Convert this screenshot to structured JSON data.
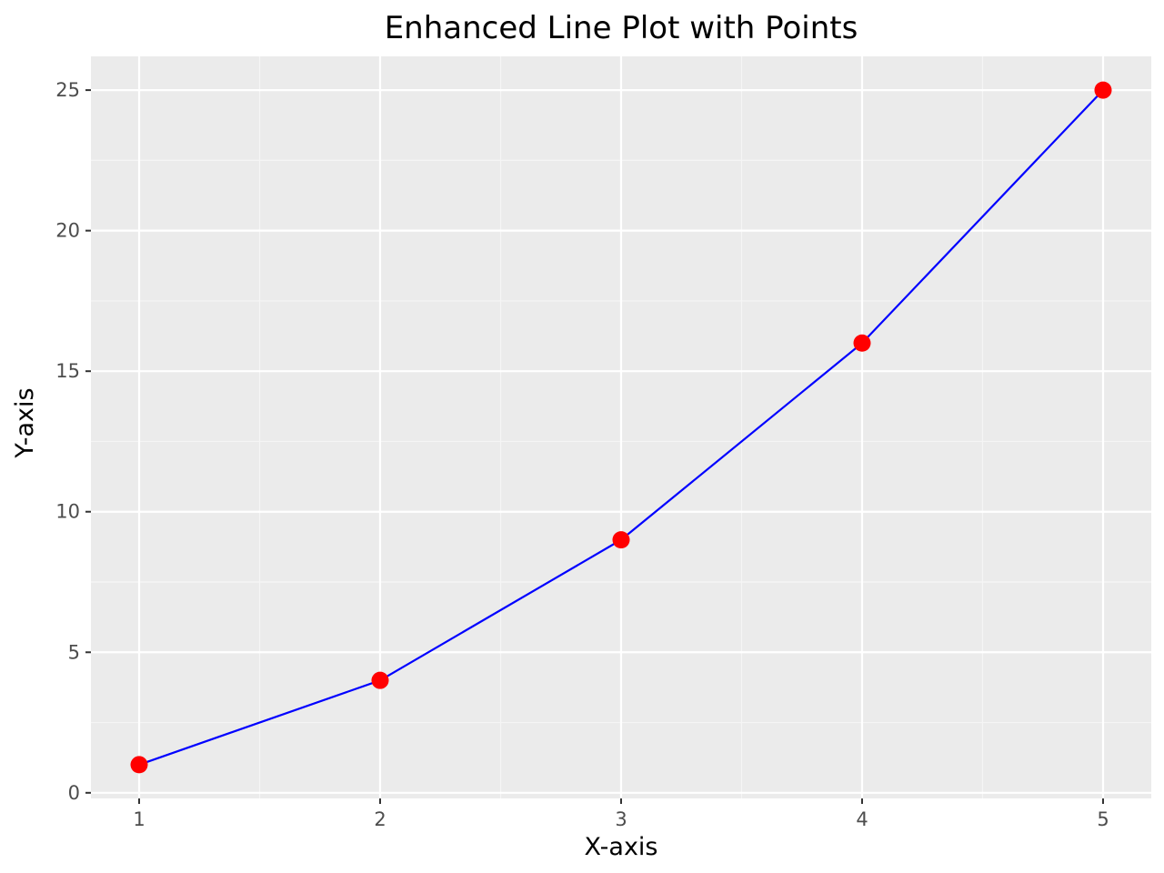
{
  "chart_data": {
    "type": "line",
    "title": "Enhanced Line Plot with Points",
    "xlabel": "X-axis",
    "ylabel": "Y-axis",
    "x": [
      1,
      2,
      3,
      4,
      5
    ],
    "series": [
      {
        "values": [
          1,
          4,
          9,
          16,
          25
        ],
        "line_color": "#0000ff",
        "point_color": "#ff0000"
      }
    ],
    "xlim": [
      0.8,
      5.2
    ],
    "ylim": [
      -0.2,
      26.2
    ],
    "x_ticks": [
      1,
      2,
      3,
      4,
      5
    ],
    "y_ticks": [
      0,
      5,
      10,
      15,
      20,
      25
    ],
    "x_tick_labels": [
      "1",
      "2",
      "3",
      "4",
      "5"
    ],
    "y_tick_labels": [
      "0",
      "5",
      "10",
      "15",
      "20",
      "25"
    ],
    "x_minor_ticks": [
      1.5,
      2.5,
      3.5,
      4.5
    ],
    "y_minor_ticks": [
      2.5,
      7.5,
      12.5,
      17.5,
      22.5
    ],
    "grid": true,
    "legend": "none",
    "colors": {
      "panel_background": "#ebebeb",
      "grid_major": "#ffffff",
      "grid_minor": "#f5f5f5",
      "tick_mark": "#333333",
      "tick_label": "#4d4d4d"
    }
  }
}
